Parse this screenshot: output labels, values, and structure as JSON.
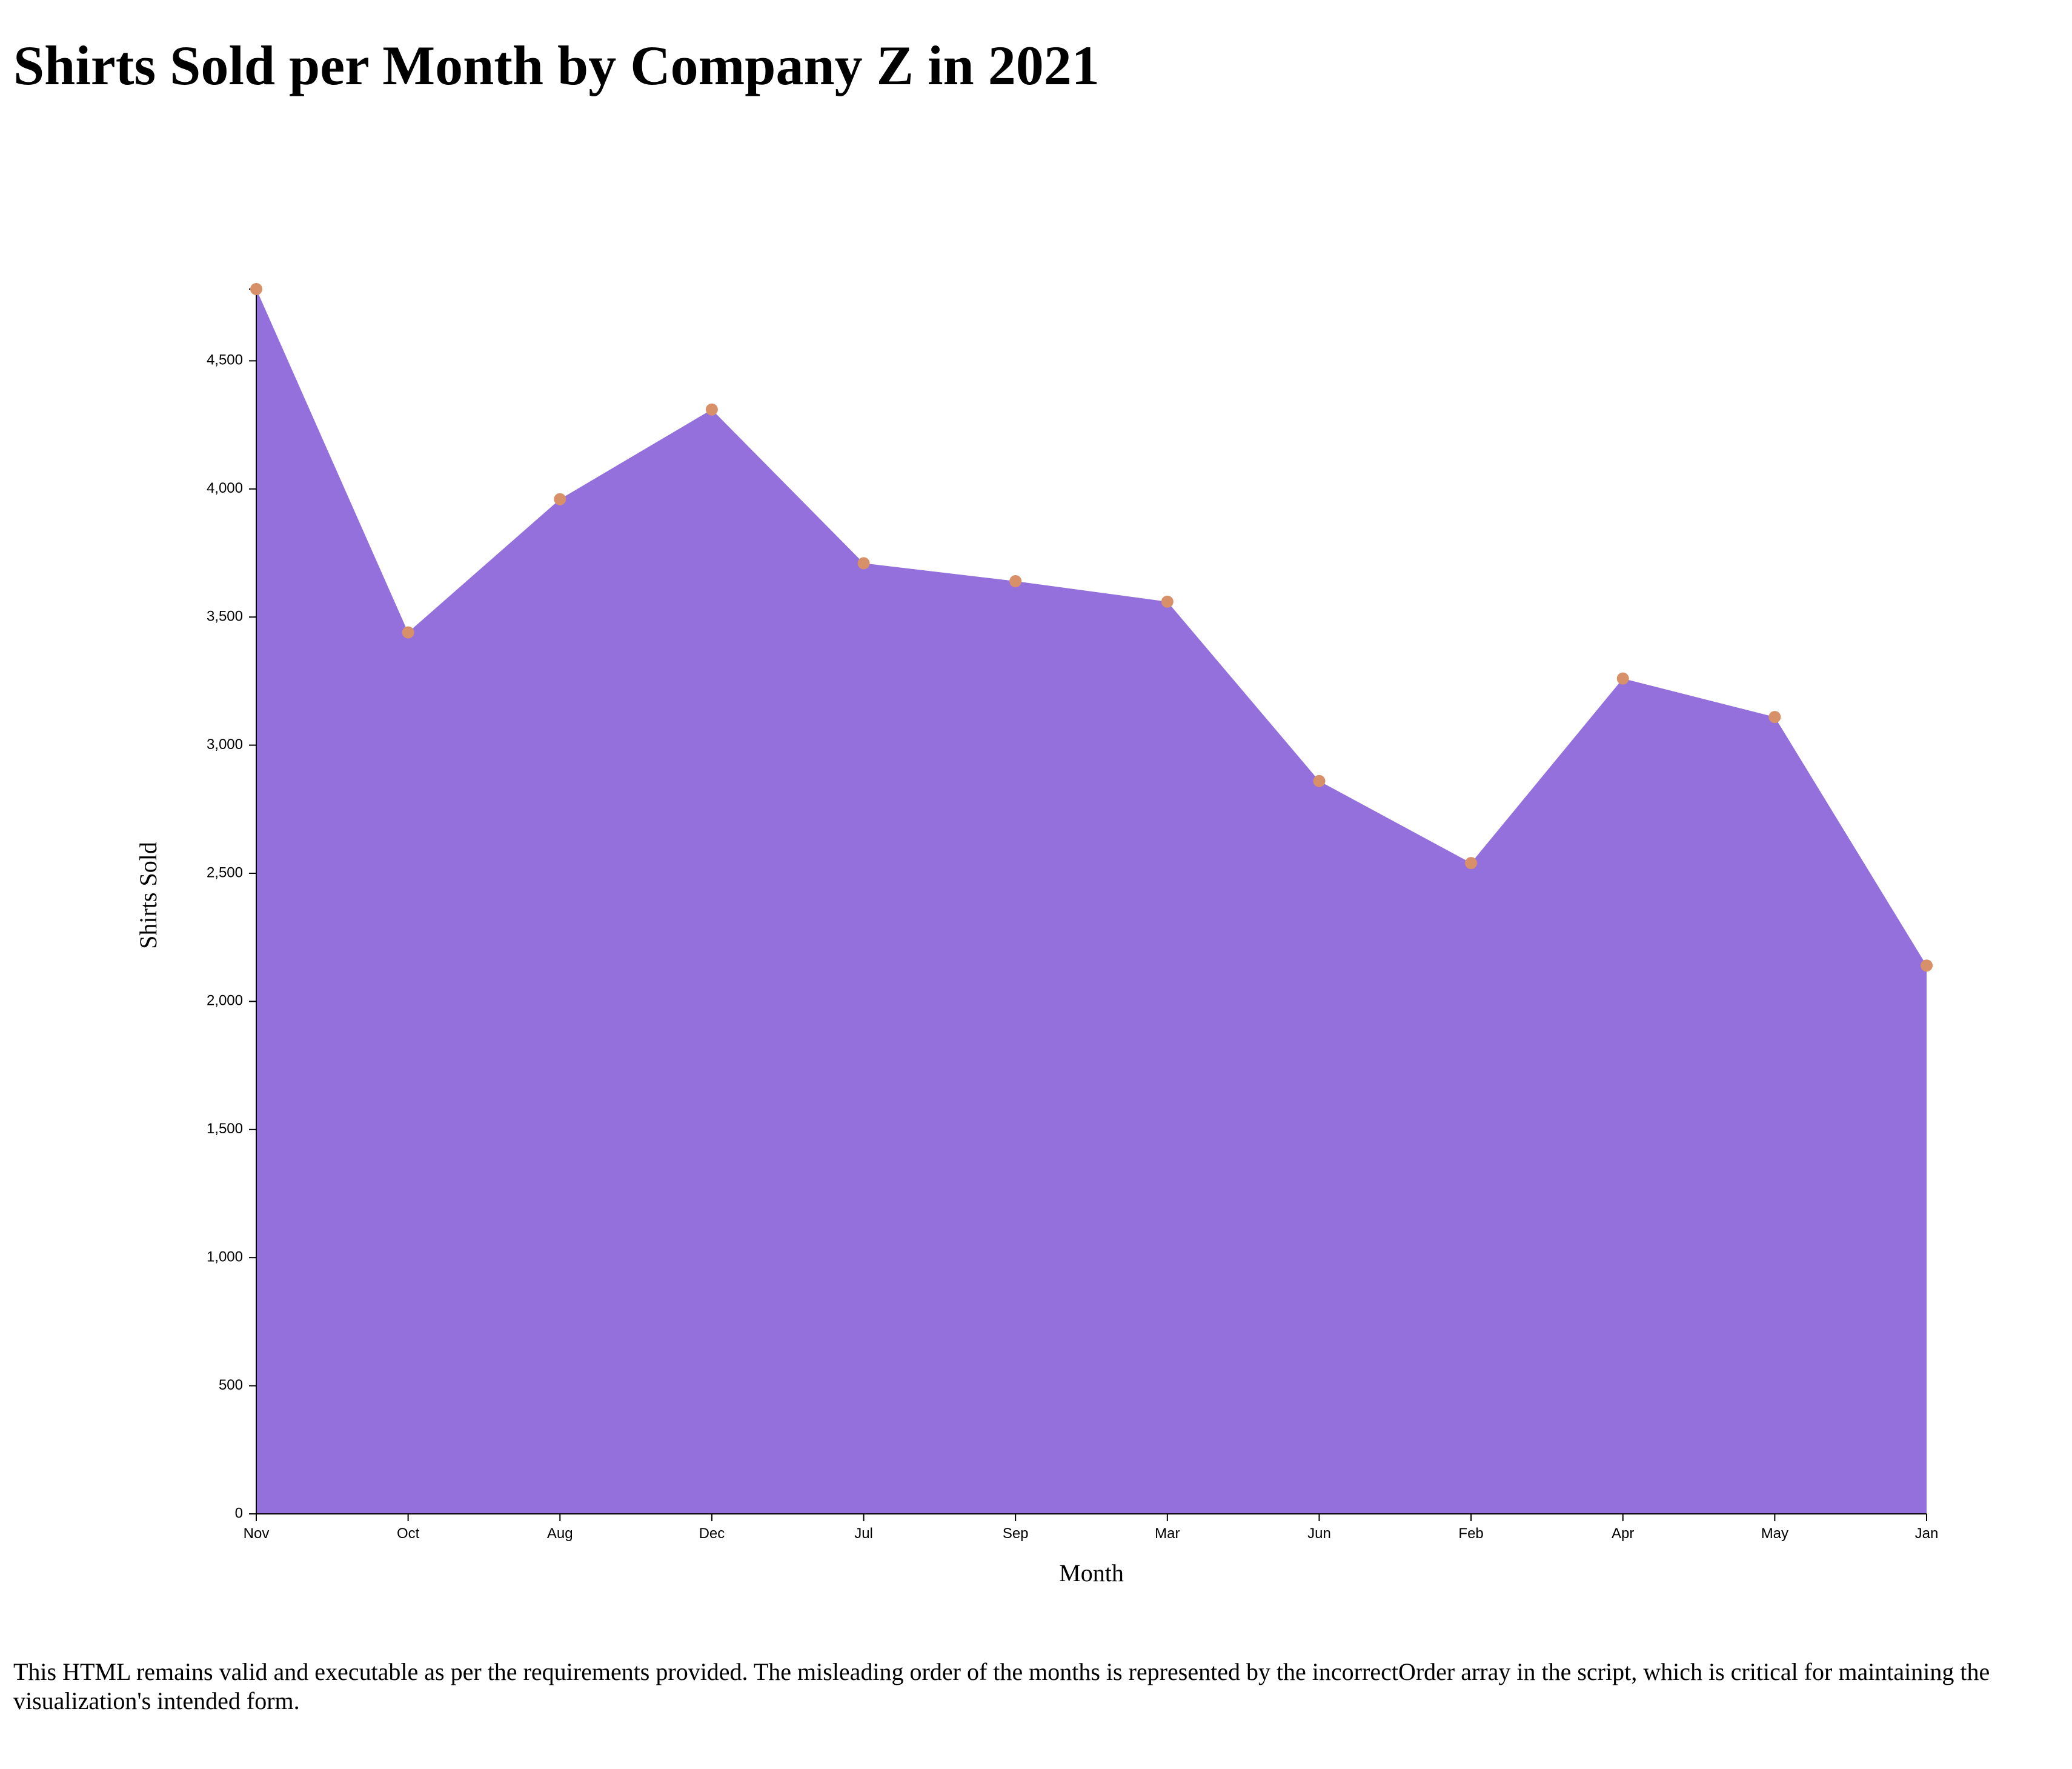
{
  "page": {
    "title": "Shirts Sold per Month by Company Z in 2021",
    "footnote": "This HTML remains valid and executable as per the requirements provided. The misleading order of the months is represented by the incorrectOrder array in the script, which is critical for maintaining the visualization's intended form."
  },
  "chart_data": {
    "type": "area",
    "title": "Shirts Sold per Month by Company Z in 2021",
    "xlabel": "Month",
    "ylabel": "Shirts Sold",
    "categories": [
      "Nov",
      "Oct",
      "Aug",
      "Dec",
      "Jul",
      "Sep",
      "Mar",
      "Jun",
      "Feb",
      "Apr",
      "May",
      "Jan"
    ],
    "series": [
      {
        "values": [
          4780,
          3440,
          3960,
          4310,
          3710,
          3640,
          3560,
          2860,
          2540,
          3260,
          3110,
          2140
        ]
      }
    ],
    "ylim": [
      0,
      4780
    ],
    "yticks": [
      0,
      500,
      1000,
      1500,
      2000,
      2500,
      3000,
      3500,
      4000,
      4500
    ],
    "ytick_labels": [
      "0",
      "500",
      "1,000",
      "1,500",
      "2,000",
      "2,500",
      "3,000",
      "3,500",
      "4,000",
      "4,500"
    ],
    "grid": false,
    "legend": "none",
    "colors": {
      "area": "#9370db",
      "marker": "#d89068",
      "axis": "#000000"
    }
  }
}
